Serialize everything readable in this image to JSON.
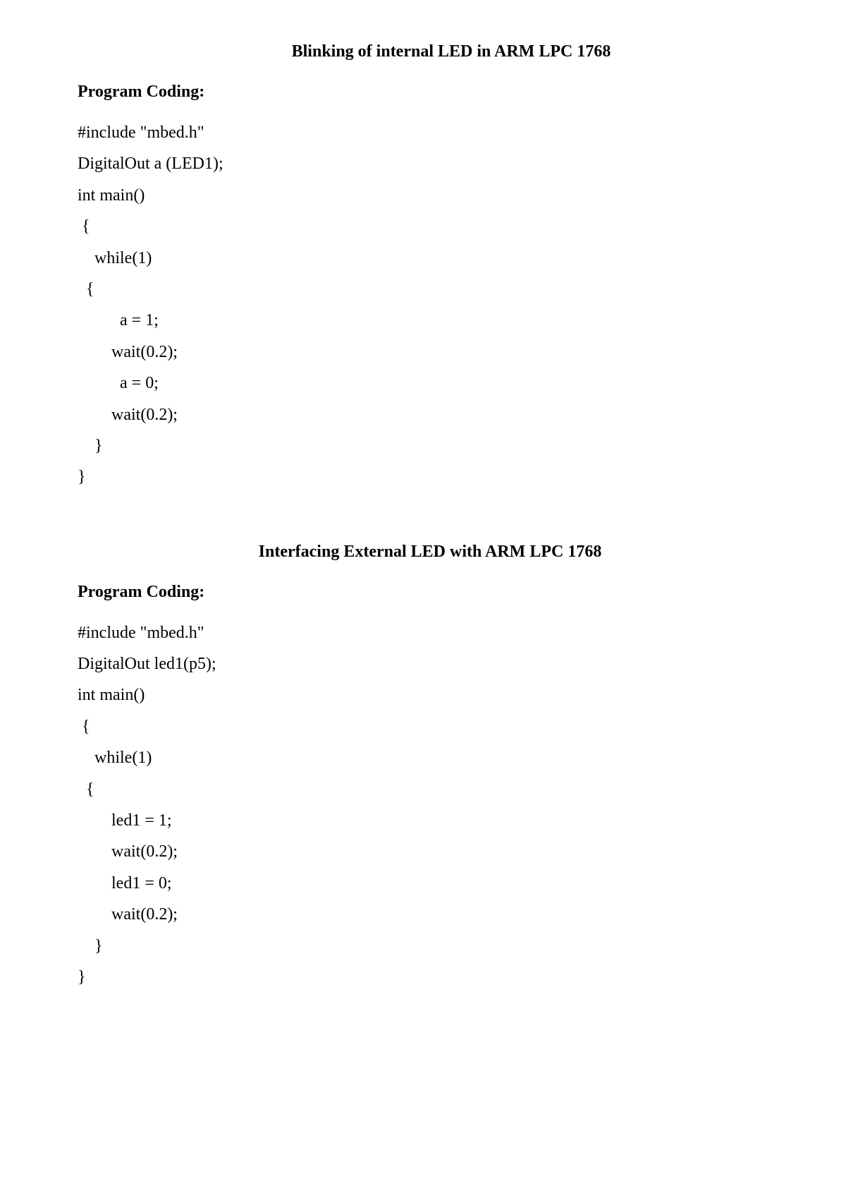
{
  "page": {
    "background_color": "#ffffff",
    "text_color": "#000000",
    "font_family": "Times New Roman",
    "title_fontsize": 24,
    "heading_fontsize": 24,
    "code_fontsize": 24,
    "line_height": 1.85
  },
  "section1": {
    "title": "Blinking of internal LED in ARM LPC 1768",
    "heading": "Program Coding:",
    "code": {
      "l0": "#include \"mbed.h\"",
      "l1": "DigitalOut a (LED1);",
      "l2": "int main()",
      "l3": " {",
      "l4": "    while(1)",
      "l5": "  {",
      "l6": "          a = 1;",
      "l7": "        wait(0.2);",
      "l8": "          a = 0;",
      "l9": "        wait(0.2);",
      "l10": "    }",
      "l11": "}"
    }
  },
  "section2": {
    "title": "Interfacing External LED with ARM LPC 1768",
    "heading": "Program Coding:",
    "code": {
      "l0": "#include \"mbed.h\"",
      "l1": "DigitalOut led1(p5);",
      "l2": "int main()",
      "l3": " {",
      "l4": "    while(1)",
      "l5": "  {",
      "l6": "        led1 = 1;",
      "l7": "        wait(0.2);",
      "l8": "        led1 = 0;",
      "l9": "        wait(0.2);",
      "l10": "    }",
      "l11": "}"
    }
  }
}
